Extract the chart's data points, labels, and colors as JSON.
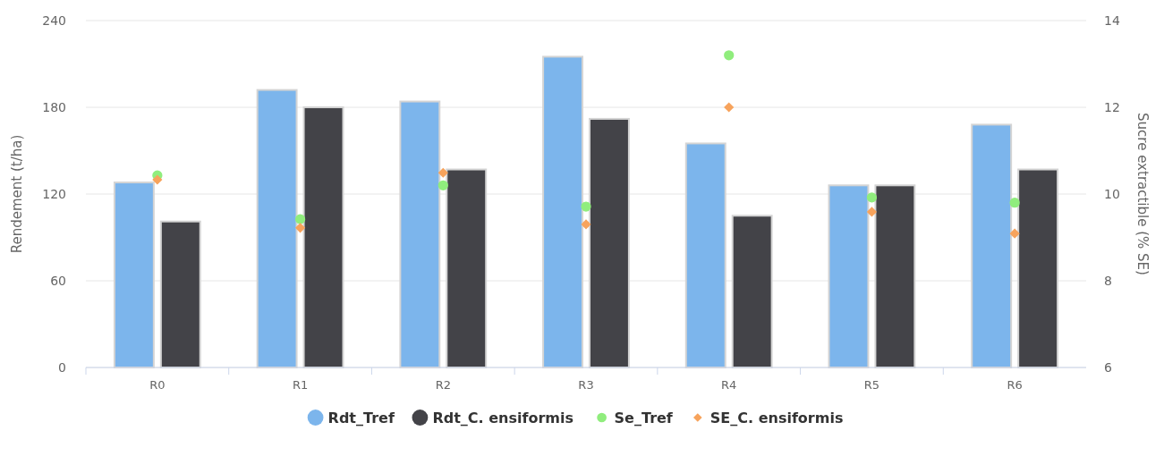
{
  "chart_data": {
    "type": "bar",
    "categories": [
      "R0",
      "R1",
      "R2",
      "R3",
      "R4",
      "R5",
      "R6"
    ],
    "ylabel": "Rendement (t/ha)",
    "y2label": "Sucre extractible (% SE)",
    "ylim": [
      0,
      240
    ],
    "yticks": [
      0,
      60,
      120,
      180,
      240
    ],
    "y2lim": [
      6,
      14
    ],
    "y2ticks": [
      6,
      8,
      10,
      12,
      14
    ],
    "grid": "y",
    "legend": "bottom",
    "series": [
      {
        "name": "Rdt_Tref",
        "color": "#7cb5ec",
        "values": [
          128,
          192,
          184,
          215,
          155,
          126,
          168
        ]
      },
      {
        "name": "Rdt_C. ensiformis",
        "color": "#434348",
        "values": [
          101,
          180,
          137,
          172,
          105,
          126,
          137
        ]
      },
      {
        "name": "Se_Tref",
        "type": "scatter",
        "axis": "y2",
        "marker": "circle",
        "color": "#90ed7d",
        "x": [
          "R0",
          "R1",
          "R2",
          "R3",
          "R4",
          "R5",
          "R6"
        ],
        "values": [
          10.43,
          9.42,
          10.2,
          9.71,
          13.2,
          9.92,
          9.8
        ]
      },
      {
        "name": "SE_C. ensiformis",
        "type": "scatter",
        "axis": "y2",
        "marker": "diamond",
        "color": "#f7a35c",
        "x": [
          "R0",
          "R1",
          "R2",
          "R3",
          "R4",
          "R5",
          "R6"
        ],
        "values": [
          10.33,
          9.22,
          10.49,
          9.3,
          12.0,
          9.59,
          9.09
        ]
      }
    ]
  }
}
